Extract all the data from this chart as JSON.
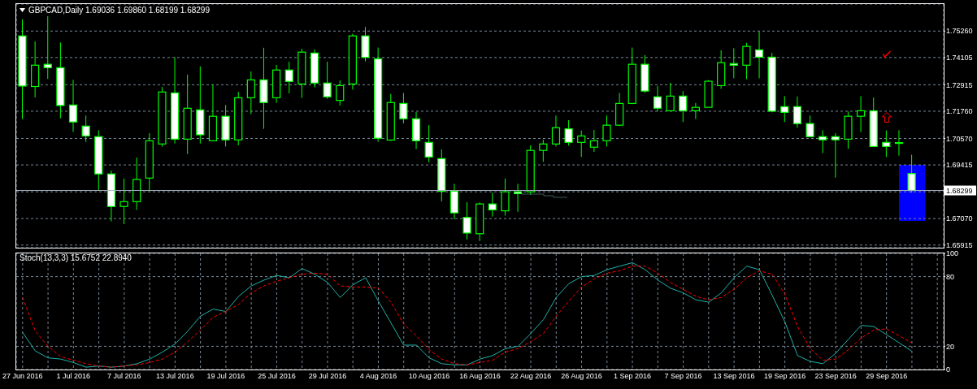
{
  "chart_data": [
    {
      "type": "candlestick",
      "title": "GBPCAD,Daily 1.69036 1.69860 1.68199 1.68299",
      "categories": [
        null,
        null,
        null,
        null,
        null,
        null,
        null,
        null,
        null,
        null,
        null,
        null,
        null,
        null,
        null,
        null,
        null,
        null,
        null,
        null,
        null,
        null,
        null,
        null,
        null,
        null,
        null,
        null,
        null,
        null,
        null,
        null,
        null,
        null,
        null,
        null,
        null,
        null,
        null,
        null,
        null,
        null,
        null,
        null,
        null,
        null,
        null,
        null,
        null,
        null,
        null,
        null,
        null,
        null,
        null,
        null,
        null,
        null,
        null,
        null,
        null,
        null,
        null,
        null,
        null,
        null,
        null,
        null,
        null,
        null,
        null,
        null,
        null
      ],
      "ohlc": [
        [
          1.7505,
          1.7577,
          1.7142,
          1.7286
        ],
        [
          1.7284,
          1.7481,
          1.7236,
          1.7377
        ],
        [
          1.7381,
          1.7591,
          1.7317,
          1.7366
        ],
        [
          1.7366,
          1.7476,
          1.7145,
          1.7201
        ],
        [
          1.7203,
          1.7313,
          1.7086,
          1.7129
        ],
        [
          1.7111,
          1.7157,
          1.7042,
          1.7068
        ],
        [
          1.7065,
          1.7093,
          1.6831,
          1.6902
        ],
        [
          1.6902,
          1.6917,
          1.6695,
          1.676
        ],
        [
          1.676,
          1.6882,
          1.6683,
          1.6781
        ],
        [
          1.6781,
          1.6974,
          1.6745,
          1.6878
        ],
        [
          1.6884,
          1.708,
          1.6827,
          1.7047
        ],
        [
          1.7033,
          1.7282,
          1.7021,
          1.726
        ],
        [
          1.7256,
          1.7411,
          1.7035,
          1.7054
        ],
        [
          1.7054,
          1.7336,
          1.6989,
          1.7189
        ],
        [
          1.7182,
          1.7372,
          1.7035,
          1.7073
        ],
        [
          1.7047,
          1.7292,
          1.7045,
          1.7154
        ],
        [
          1.7154,
          1.7203,
          1.7022,
          1.7051
        ],
        [
          1.7051,
          1.7261,
          1.7027,
          1.7235
        ],
        [
          1.7235,
          1.735,
          1.7163,
          1.7313
        ],
        [
          1.7313,
          1.7453,
          1.7099,
          1.7214
        ],
        [
          1.7235,
          1.7378,
          1.7213,
          1.7356
        ],
        [
          1.7356,
          1.7392,
          1.7254,
          1.7306
        ],
        [
          1.7295,
          1.7449,
          1.7234,
          1.7434
        ],
        [
          1.743,
          1.7446,
          1.728,
          1.7299
        ],
        [
          1.7299,
          1.7392,
          1.723,
          1.7239
        ],
        [
          1.7223,
          1.7311,
          1.7201,
          1.7288
        ],
        [
          1.7295,
          1.7514,
          1.7271,
          1.7505
        ],
        [
          1.7505,
          1.7544,
          1.7394,
          1.7411
        ],
        [
          1.7405,
          1.7454,
          1.7042,
          1.7058
        ],
        [
          1.705,
          1.7251,
          1.7046,
          1.7214
        ],
        [
          1.721,
          1.7256,
          1.7123,
          1.7143
        ],
        [
          1.7143,
          1.7173,
          1.7011,
          1.7047
        ],
        [
          1.704,
          1.7115,
          1.6953,
          1.6976
        ],
        [
          1.6969,
          1.7009,
          1.6782,
          1.6826
        ],
        [
          1.6827,
          1.6859,
          1.6704,
          1.6732
        ],
        [
          1.6712,
          1.6779,
          1.6616,
          1.6644
        ],
        [
          1.6641,
          1.6778,
          1.6609,
          1.6771
        ],
        [
          1.6771,
          1.682,
          1.6716,
          1.6745
        ],
        [
          1.6741,
          1.6882,
          1.672,
          1.6824
        ],
        [
          1.6824,
          1.6859,
          1.6737,
          1.6816
        ],
        [
          1.6824,
          1.7027,
          1.6811,
          1.7005
        ],
        [
          1.7005,
          1.7052,
          1.6955,
          1.7033
        ],
        [
          1.7033,
          1.7157,
          1.7022,
          1.7104
        ],
        [
          1.7099,
          1.7137,
          1.7026,
          1.704
        ],
        [
          1.704,
          1.7092,
          1.6976,
          1.7068
        ],
        [
          1.7019,
          1.7094,
          1.6998,
          1.7047
        ],
        [
          1.7047,
          1.7157,
          1.7022,
          1.7115
        ],
        [
          1.7115,
          1.7256,
          1.7111,
          1.721
        ],
        [
          1.721,
          1.7454,
          1.7207,
          1.7381
        ],
        [
          1.7381,
          1.7421,
          1.7256,
          1.7264
        ],
        [
          1.7239,
          1.7286,
          1.7175,
          1.7189
        ],
        [
          1.7178,
          1.73,
          1.7175,
          1.7242
        ],
        [
          1.7242,
          1.7264,
          1.7129,
          1.7178
        ],
        [
          1.7178,
          1.7212,
          1.7142,
          1.7193
        ],
        [
          1.7193,
          1.7312,
          1.7193,
          1.7307
        ],
        [
          1.7288,
          1.7442,
          1.7274,
          1.7388
        ],
        [
          1.7384,
          1.7451,
          1.732,
          1.7377
        ],
        [
          1.7377,
          1.7475,
          1.7316,
          1.7459
        ],
        [
          1.7444,
          1.7524,
          1.732,
          1.7412
        ],
        [
          1.7412,
          1.7431,
          1.7171,
          1.7176
        ],
        [
          1.7196,
          1.7242,
          1.7129,
          1.7171
        ],
        [
          1.7196,
          1.724,
          1.7104,
          1.7122
        ],
        [
          1.7122,
          1.7157,
          1.7065,
          1.7065
        ],
        [
          1.7065,
          1.7093,
          1.6993,
          1.7051
        ],
        [
          1.7065,
          1.708,
          1.6886,
          1.7051
        ],
        [
          1.7054,
          1.7175,
          1.7012,
          1.7154
        ],
        [
          1.7154,
          1.7242,
          1.7085,
          1.7178
        ],
        [
          1.7178,
          1.7236,
          1.7022,
          1.7022
        ],
        [
          1.704,
          1.7092,
          1.6976,
          1.7022
        ],
        [
          1.7039,
          1.7093,
          1.6982,
          1.7039
        ],
        [
          1.69036,
          1.6986,
          1.68199,
          1.68299
        ],
        null,
        null
      ],
      "color": "#00ff00",
      "ylim": [
        1.658,
        1.7644
      ],
      "yticks": [
        {
          "value": 1.7526,
          "label": "1.75260"
        },
        1.74105,
        1.72915,
        {
          "value": 1.7176,
          "label": "1.71760"
        },
        {
          "value": 1.7057,
          "label": "1.70570"
        },
        1.69415,
        {
          "value": 1.6824,
          "label": null
        },
        {
          "value": 1.6707,
          "label": "1.67070"
        },
        1.65915
      ],
      "ref_lines": [
        {
          "axis": "y",
          "value": 1.68299,
          "label": "1.68299",
          "color": "#aab4c4"
        }
      ],
      "grid": true,
      "tick_labels": "y"
    },
    {
      "type": "line",
      "title": "Stoch(13,3,3) 15.6752 22.8940",
      "categories": [
        "27 Jun 2016",
        null,
        null,
        null,
        "1 Jul 2016",
        null,
        null,
        null,
        "7 Jul 2016",
        null,
        null,
        null,
        "13 Jul 2016",
        null,
        null,
        null,
        "19 Jul 2016",
        null,
        null,
        null,
        "25 Jul 2016",
        null,
        null,
        null,
        "29 Jul 2016",
        null,
        null,
        null,
        "4 Aug 2016",
        null,
        null,
        null,
        "10 Aug 2016",
        null,
        null,
        null,
        "16 Aug 2016",
        null,
        null,
        null,
        "22 Aug 2016",
        null,
        null,
        null,
        "26 Aug 2016",
        null,
        null,
        null,
        "1 Sep 2016",
        null,
        null,
        null,
        "7 Sep 2016",
        null,
        null,
        null,
        "13 Sep 2016",
        null,
        null,
        null,
        "19 Sep 2016",
        null,
        null,
        null,
        "23 Sep 2016",
        null,
        null,
        null,
        "29 Sep 2016",
        null,
        null,
        null,
        null
      ],
      "series": [
        {
          "color": "#20b2aa",
          "values": [
            32,
            16,
            10,
            9,
            6,
            2,
            3,
            2,
            3,
            5,
            9,
            15,
            22,
            33,
            46,
            52,
            50,
            63,
            72,
            77,
            81,
            79,
            87,
            82,
            75,
            62,
            73,
            79,
            59,
            40,
            21,
            21,
            10,
            5,
            4,
            4,
            9,
            12,
            18,
            20,
            31,
            43,
            62,
            74,
            80,
            81,
            86,
            89,
            92,
            86,
            77,
            70,
            66,
            60,
            58,
            66,
            79,
            89,
            86,
            64,
            41,
            12,
            7,
            5,
            14,
            26,
            38,
            37,
            30,
            23,
            15.6752,
            null,
            null
          ]
        },
        {
          "color": "#ff0000",
          "line_style": "dashed",
          "values": [
            62,
            33,
            20,
            11,
            8,
            5,
            3,
            2,
            3,
            4,
            6,
            9,
            15,
            24,
            34,
            45,
            50,
            56,
            66,
            72,
            76,
            79,
            82,
            83,
            82,
            72,
            71,
            71,
            70,
            58,
            39,
            29,
            17,
            9,
            5,
            4,
            6,
            8,
            15,
            18,
            24,
            31,
            46,
            59,
            71,
            78,
            83,
            85,
            89,
            89,
            83,
            75,
            69,
            63,
            60,
            62,
            69,
            79,
            85,
            82,
            65,
            37,
            18,
            8,
            9,
            17,
            27,
            34,
            35,
            29,
            22.894,
            null,
            null
          ]
        }
      ],
      "ylim": [
        0,
        100
      ],
      "yticks": [
        0,
        20,
        80,
        100
      ],
      "grid": true
    }
  ]
}
